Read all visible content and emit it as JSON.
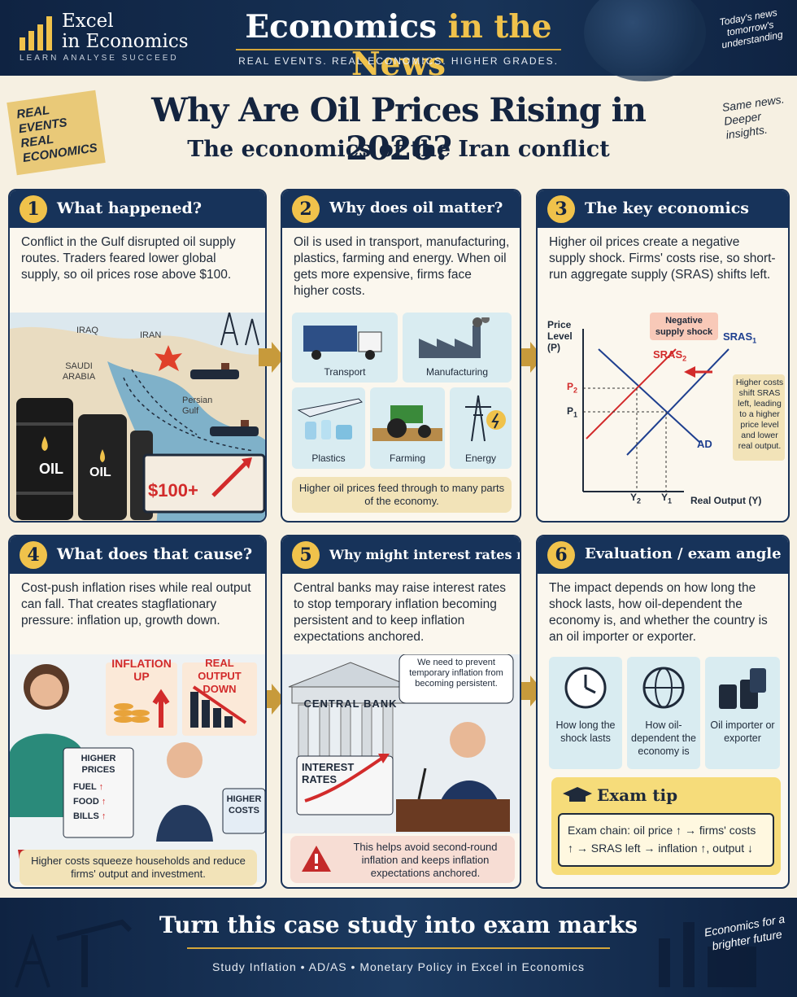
{
  "header": {
    "logo_line1": "Excel",
    "logo_line2": "in Economics",
    "logo_tagline": "LEARN  ANALYSE  SUCCEED",
    "title_part1": "Economics",
    "title_part2": "in the",
    "title_part3": "News",
    "subtitle": "REAL EVENTS.  REAL ECONOMICS.  HIGHER GRADES.",
    "corner_note": "Today's news tomorrow's understanding"
  },
  "hero": {
    "sticker": [
      "REAL",
      "EVENTS",
      "REAL",
      "ECONOMICS"
    ],
    "title": "Why Are Oil Prices Rising in 2026?",
    "subtitle": "The economics of the Iran conflict",
    "side_note": "Same news. Deeper insights."
  },
  "cards": [
    {
      "num": "1",
      "title": "What happened?",
      "body": "Conflict in the Gulf disrupted oil supply routes. Traders feared lower global supply, so oil prices rose above $100.",
      "map_labels": [
        "IRAQ",
        "IRAN",
        "SAUDI ARABIA",
        "Persian Gulf"
      ],
      "barrel_label": "OIL",
      "price_sign": "$100+"
    },
    {
      "num": "2",
      "title": "Why does oil matter?",
      "body": "Oil is used in transport, manufacturing, plastics, farming and energy. When oil gets more expensive, firms face higher costs.",
      "tiles": [
        "Transport",
        "Manufacturing",
        "Plastics",
        "Farming",
        "Energy"
      ],
      "caption": "Higher oil prices feed through to many parts of the economy."
    },
    {
      "num": "3",
      "title": "The key economics",
      "body": "Higher oil prices create a negative supply shock. Firms' costs rise, so short-run aggregate supply (SRAS) shifts left.",
      "y_axis": "Price Level (P)",
      "x_axis": "Real Output (Y)",
      "shock_label": "Negative supply shock",
      "sras1": "SRAS",
      "sras1_sub": "1",
      "sras2": "SRAS",
      "sras2_sub": "2",
      "ad": "AD",
      "p2": "P",
      "p2_sub": "2",
      "p1": "P",
      "p1_sub": "1",
      "y2": "Y",
      "y2_sub": "2",
      "y1": "Y",
      "y1_sub": "1",
      "note": "Higher costs shift SRAS left, leading to a higher price level and lower real output."
    },
    {
      "num": "4",
      "title": "What does that cause?",
      "body": "Cost-push inflation rises while real output can fall. That creates stagflationary pressure: inflation up, growth down.",
      "inflation_label": "INFLATION UP",
      "output_label": "REAL OUTPUT DOWN",
      "prices_sign": {
        "title": "HIGHER PRICES",
        "items": [
          "FUEL",
          "FOOD",
          "BILLS"
        ]
      },
      "costs_sign": "HIGHER COSTS",
      "caption": "Higher costs squeeze households and reduce firms' output and investment."
    },
    {
      "num": "5",
      "title": "Why might interest rates rise?",
      "body": "Central banks may raise interest rates to stop temporary inflation becoming persistent and to keep inflation expectations anchored.",
      "bank_label": "CENTRAL BANK",
      "speech": "We need to prevent temporary inflation from becoming persistent.",
      "rates_label": "INTEREST RATES",
      "caption": "This helps avoid second-round inflation and keeps inflation expectations anchored."
    },
    {
      "num": "6",
      "title": "Evaluation / exam angle",
      "body": "The impact depends on how long the shock lasts, how oil-dependent the economy is, and whether the country is an oil importer or exporter.",
      "tiles": [
        "How long the shock lasts",
        "How oil-dependent the economy is",
        "Oil importer or exporter"
      ],
      "exam_tip_title": "Exam tip",
      "exam_tip": "Exam chain: oil price ↑ → firms' costs ↑ → SRAS left → inflation ↑, output ↓"
    }
  ],
  "footer": {
    "title": "Turn this case study into exam marks",
    "subtitle": "Study Inflation • AD/AS • Monetary Policy in Excel in Economics",
    "note": "Economics for a brighter future"
  },
  "colors": {
    "navy": "#17335a",
    "gold": "#f0c24b",
    "cream": "#fbf7ee",
    "red": "#d22b2b",
    "blue": "#1e3f8f"
  }
}
